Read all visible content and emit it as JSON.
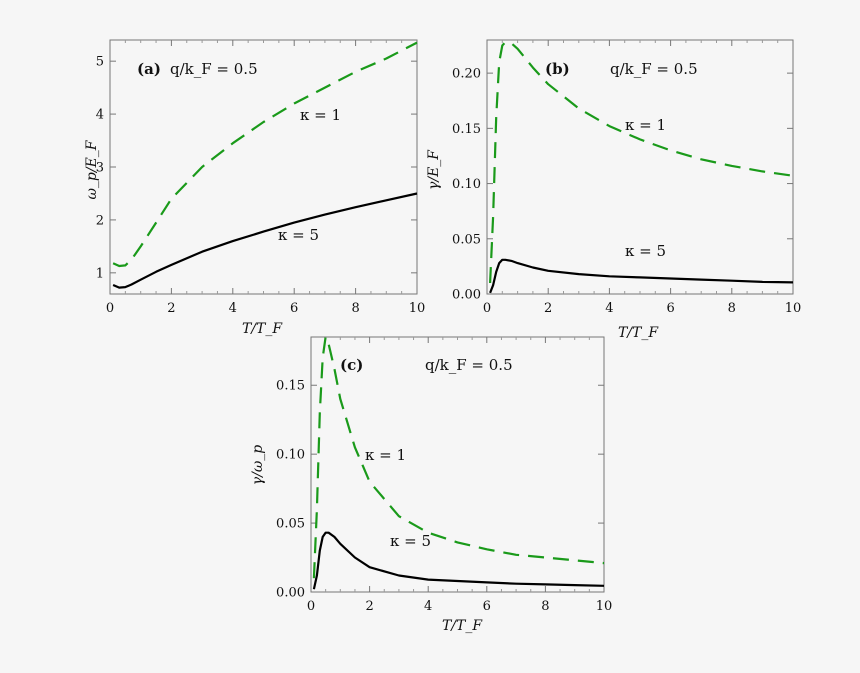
{
  "chart_data": [
    {
      "type": "line",
      "panel_label": "(a)",
      "annotation": "q/k_F = 0.5",
      "xlabel": "T/T_F",
      "ylabel": "ω_p/E_F",
      "xlim": [
        0,
        10
      ],
      "ylim": [
        0.6,
        5.4
      ],
      "xticks": [
        "0",
        "2",
        "4",
        "6",
        "8",
        "10"
      ],
      "yticks": [
        "1",
        "2",
        "3",
        "4",
        "5"
      ],
      "xtick_values": [
        0,
        2,
        4,
        6,
        8,
        10
      ],
      "ytick_values": [
        1,
        2,
        3,
        4,
        5
      ],
      "series": [
        {
          "name": "κ = 1",
          "color": "#1a9a1a",
          "dash": "dashed",
          "x": [
            0.1,
            0.3,
            0.5,
            0.7,
            1.0,
            1.5,
            2,
            3,
            4,
            5,
            6,
            7,
            8,
            9,
            10
          ],
          "y": [
            1.18,
            1.13,
            1.14,
            1.25,
            1.5,
            1.95,
            2.4,
            3.0,
            3.45,
            3.85,
            4.2,
            4.5,
            4.8,
            5.05,
            5.35
          ]
        },
        {
          "name": "κ = 5",
          "color": "#000000",
          "dash": "solid",
          "x": [
            0.1,
            0.3,
            0.5,
            0.7,
            1.0,
            1.5,
            2,
            3,
            4,
            5,
            6,
            7,
            8,
            9,
            10
          ],
          "y": [
            0.77,
            0.72,
            0.73,
            0.78,
            0.87,
            1.02,
            1.15,
            1.4,
            1.6,
            1.78,
            1.95,
            2.1,
            2.24,
            2.37,
            2.5
          ]
        }
      ]
    },
    {
      "type": "line",
      "panel_label": "(b)",
      "annotation": "q/k_F = 0.5",
      "xlabel": "T/T_F",
      "ylabel": "γ/E_F",
      "xlim": [
        0,
        10
      ],
      "ylim": [
        0,
        0.23
      ],
      "xticks": [
        "0",
        "2",
        "4",
        "6",
        "8",
        "10"
      ],
      "yticks": [
        "0.00",
        "0.05",
        "0.10",
        "0.15",
        "0.20"
      ],
      "xtick_values": [
        0,
        2,
        4,
        6,
        8,
        10
      ],
      "ytick_values": [
        0,
        0.05,
        0.1,
        0.15,
        0.2
      ],
      "series": [
        {
          "name": "κ = 1",
          "color": "#1a9a1a",
          "dash": "dashed",
          "x": [
            0.1,
            0.2,
            0.3,
            0.4,
            0.5,
            0.6,
            0.8,
            1.0,
            1.5,
            2,
            3,
            4,
            5,
            6,
            7,
            8,
            9,
            10
          ],
          "y": [
            0.01,
            0.07,
            0.16,
            0.21,
            0.225,
            0.228,
            0.227,
            0.222,
            0.205,
            0.19,
            0.168,
            0.152,
            0.14,
            0.13,
            0.122,
            0.116,
            0.111,
            0.107
          ]
        },
        {
          "name": "κ = 5",
          "color": "#000000",
          "dash": "solid",
          "x": [
            0.1,
            0.2,
            0.3,
            0.4,
            0.5,
            0.6,
            0.8,
            1.0,
            1.5,
            2,
            3,
            4,
            5,
            6,
            7,
            8,
            9,
            10
          ],
          "y": [
            0.001,
            0.008,
            0.02,
            0.028,
            0.031,
            0.031,
            0.03,
            0.028,
            0.024,
            0.021,
            0.018,
            0.016,
            0.015,
            0.014,
            0.013,
            0.012,
            0.011,
            0.0105
          ]
        }
      ]
    },
    {
      "type": "line",
      "panel_label": "(c)",
      "annotation": "q/k_F = 0.5",
      "xlabel": "T/T_F",
      "ylabel": "γ/ω_p",
      "xlim": [
        0,
        10
      ],
      "ylim": [
        0,
        0.185
      ],
      "xticks": [
        "0",
        "2",
        "4",
        "6",
        "8",
        "10"
      ],
      "yticks": [
        "0.00",
        "0.05",
        "0.10",
        "0.15"
      ],
      "xtick_values": [
        0,
        2,
        4,
        6,
        8,
        10
      ],
      "ytick_values": [
        0,
        0.05,
        0.1,
        0.15
      ],
      "series": [
        {
          "name": "κ = 1",
          "color": "#1a9a1a",
          "dash": "dashed",
          "x": [
            0.1,
            0.2,
            0.3,
            0.4,
            0.5,
            0.6,
            0.8,
            1.0,
            1.5,
            2,
            3,
            4,
            5,
            6,
            7,
            8,
            9,
            10
          ],
          "y": [
            0.01,
            0.06,
            0.13,
            0.17,
            0.185,
            0.18,
            0.162,
            0.14,
            0.105,
            0.08,
            0.055,
            0.043,
            0.036,
            0.031,
            0.027,
            0.025,
            0.023,
            0.021
          ]
        },
        {
          "name": "κ = 5",
          "color": "#000000",
          "dash": "solid",
          "x": [
            0.1,
            0.2,
            0.3,
            0.4,
            0.5,
            0.6,
            0.8,
            1.0,
            1.5,
            2,
            3,
            4,
            5,
            6,
            7,
            8,
            9,
            10
          ],
          "y": [
            0.002,
            0.012,
            0.03,
            0.04,
            0.043,
            0.043,
            0.04,
            0.035,
            0.025,
            0.018,
            0.012,
            0.009,
            0.008,
            0.007,
            0.006,
            0.0055,
            0.005,
            0.0045
          ]
        }
      ]
    }
  ]
}
